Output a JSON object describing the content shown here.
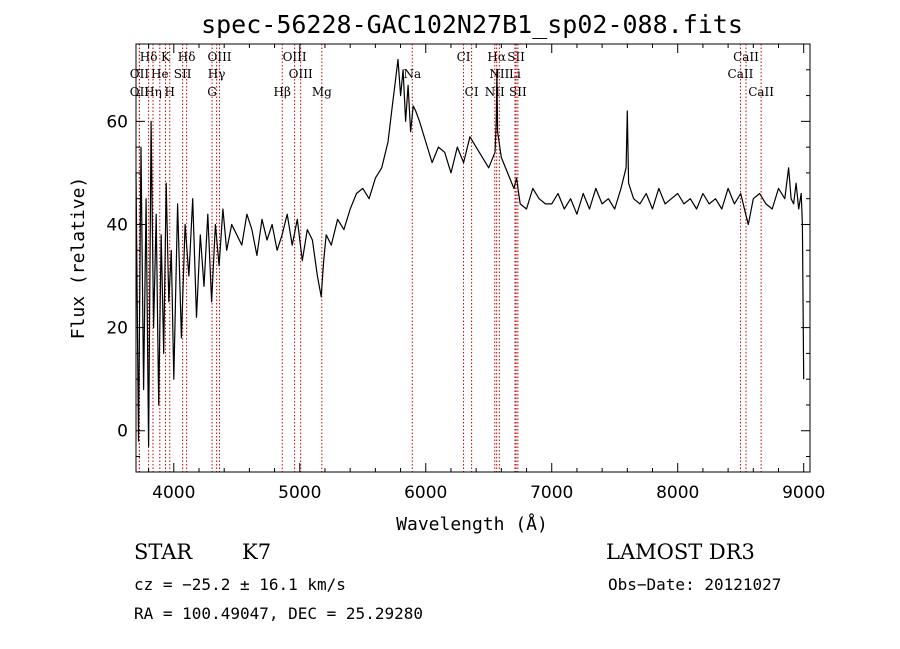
{
  "chart_data": {
    "type": "line",
    "title": "spec-56228-GAC102N27B1_sp02-088.fits",
    "xlabel": "Wavelength (Å)",
    "ylabel": "Flux (relative)",
    "xlim": [
      3700,
      9050
    ],
    "ylim": [
      -8,
      75
    ],
    "xticks": [
      4000,
      5000,
      6000,
      7000,
      8000,
      9000
    ],
    "yticks": [
      0,
      20,
      40,
      60
    ],
    "grid": false,
    "series": [
      {
        "name": "flux",
        "x": [
          3700,
          3720,
          3740,
          3760,
          3780,
          3800,
          3820,
          3840,
          3860,
          3880,
          3900,
          3920,
          3940,
          3960,
          3980,
          4000,
          4030,
          4060,
          4090,
          4120,
          4150,
          4180,
          4210,
          4240,
          4270,
          4300,
          4330,
          4360,
          4390,
          4420,
          4460,
          4500,
          4540,
          4580,
          4620,
          4660,
          4700,
          4740,
          4780,
          4820,
          4860,
          4900,
          4940,
          4980,
          5020,
          5060,
          5100,
          5140,
          5170,
          5190,
          5210,
          5250,
          5300,
          5350,
          5400,
          5450,
          5500,
          5550,
          5600,
          5650,
          5700,
          5730,
          5760,
          5780,
          5800,
          5820,
          5840,
          5860,
          5880,
          5900,
          5920,
          5950,
          6000,
          6050,
          6100,
          6150,
          6200,
          6250,
          6300,
          6350,
          6400,
          6450,
          6500,
          6550,
          6560,
          6565,
          6570,
          6600,
          6650,
          6700,
          6720,
          6750,
          6800,
          6850,
          6900,
          6950,
          7000,
          7050,
          7100,
          7150,
          7200,
          7250,
          7300,
          7350,
          7400,
          7450,
          7500,
          7550,
          7590,
          7600,
          7610,
          7650,
          7700,
          7750,
          7800,
          7850,
          7900,
          7950,
          8000,
          8050,
          8100,
          8150,
          8200,
          8250,
          8300,
          8350,
          8400,
          8450,
          8500,
          8540,
          8560,
          8600,
          8650,
          8700,
          8750,
          8800,
          8850,
          8880,
          8900,
          8920,
          8940,
          8960,
          8980,
          8990,
          9000
        ],
        "y": [
          50,
          -2,
          55,
          8,
          45,
          -3,
          60,
          20,
          42,
          5,
          38,
          15,
          48,
          25,
          35,
          10,
          44,
          18,
          40,
          30,
          45,
          22,
          38,
          28,
          42,
          25,
          40,
          32,
          43,
          35,
          40,
          38,
          36,
          42,
          39,
          34,
          41,
          37,
          40,
          35,
          38,
          42,
          36,
          41,
          33,
          39,
          37,
          30,
          26,
          33,
          38,
          36,
          41,
          39,
          43,
          46,
          47,
          45,
          49,
          51,
          56,
          62,
          68,
          72,
          65,
          70,
          60,
          67,
          58,
          63,
          62,
          60,
          56,
          52,
          55,
          54,
          50,
          55,
          52,
          57,
          55,
          53,
          51,
          54,
          60,
          70,
          58,
          53,
          50,
          47,
          49,
          44,
          43,
          47,
          45,
          44,
          44,
          46,
          43,
          45,
          42,
          46,
          43,
          47,
          44,
          45,
          43,
          47,
          51,
          62,
          48,
          45,
          44,
          46,
          43,
          47,
          44,
          45,
          46,
          44,
          45,
          43,
          46,
          44,
          45,
          43,
          47,
          44,
          46,
          42,
          40,
          45,
          46,
          44,
          43,
          47,
          45,
          51,
          45,
          44,
          48,
          43,
          46,
          40,
          10
        ]
      }
    ],
    "spectral_lines": [
      {
        "label": "Hδ",
        "x": 3800,
        "row": 1
      },
      {
        "label": "K",
        "x": 3934,
        "row": 1
      },
      {
        "label": "Hδ",
        "x": 4102,
        "row": 1
      },
      {
        "label": "OIII",
        "x": 4363,
        "row": 1
      },
      {
        "label": "OIII",
        "x": 4959,
        "row": 1
      },
      {
        "label": "CI",
        "x": 6300,
        "row": 1
      },
      {
        "label": "Hα",
        "x": 6563,
        "row": 1
      },
      {
        "label": "SII",
        "x": 6717,
        "row": 1
      },
      {
        "label": "CaII",
        "x": 8542,
        "row": 1
      },
      {
        "label": "OII",
        "x": 3727,
        "row": 2
      },
      {
        "label": "He",
        "x": 3889,
        "row": 2
      },
      {
        "label": "SII",
        "x": 4070,
        "row": 2
      },
      {
        "label": "Hγ",
        "x": 4340,
        "row": 2
      },
      {
        "label": "OIII",
        "x": 5007,
        "row": 2
      },
      {
        "label": "Na",
        "x": 5893,
        "row": 2
      },
      {
        "label": "NII",
        "x": 6584,
        "row": 2
      },
      {
        "label": "Li",
        "x": 6708,
        "row": 2
      },
      {
        "label": "CaII",
        "x": 8498,
        "row": 2
      },
      {
        "label": "OII",
        "x": 3727,
        "row": 3
      },
      {
        "label": "Hη",
        "x": 3835,
        "row": 3
      },
      {
        "label": "H",
        "x": 3968,
        "row": 3
      },
      {
        "label": "G",
        "x": 4304,
        "row": 3
      },
      {
        "label": "Hβ",
        "x": 4861,
        "row": 3
      },
      {
        "label": "Mg",
        "x": 5175,
        "row": 3
      },
      {
        "label": "CI",
        "x": 6364,
        "row": 3
      },
      {
        "label": "NII",
        "x": 6548,
        "row": 3
      },
      {
        "label": "SII",
        "x": 6731,
        "row": 3
      },
      {
        "label": "CaII",
        "x": 8662,
        "row": 3
      }
    ]
  },
  "info": {
    "class_label": "STAR",
    "subclass": "K7",
    "survey": "LAMOST DR3",
    "cz": "cz = −25.2 ± 16.1 km/s",
    "obs_date": "Obs−Date: 20121027",
    "coords": "RA = 100.49047, DEC =  25.29280"
  },
  "colors": {
    "line": "#000000",
    "marker": "#cc0000"
  }
}
